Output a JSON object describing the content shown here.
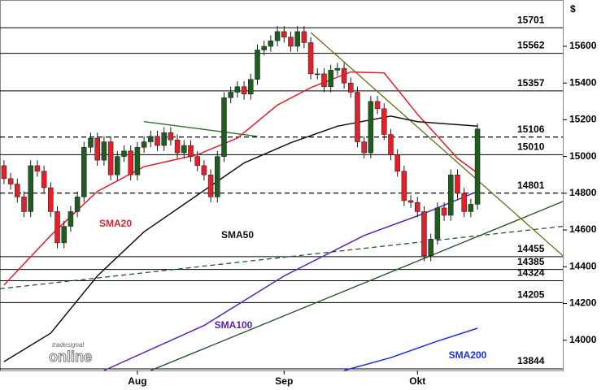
{
  "chart_data": {
    "type": "candlestick",
    "currency": "$",
    "logo": [
      "tradesignal",
      "online"
    ],
    "categories": [
      null,
      null,
      null,
      null,
      null,
      null,
      null,
      null,
      null,
      null,
      null,
      null,
      null,
      null,
      null,
      null,
      null,
      null,
      null,
      null,
      "Aug",
      null,
      null,
      null,
      null,
      null,
      null,
      null,
      null,
      null,
      null,
      null,
      null,
      null,
      null,
      null,
      null,
      null,
      null,
      null,
      null,
      null,
      "Sep",
      null,
      null,
      null,
      null,
      null,
      null,
      null,
      null,
      null,
      null,
      null,
      null,
      null,
      null,
      null,
      null,
      null,
      null,
      null,
      "Okt",
      null,
      null,
      null,
      null,
      null,
      null,
      null,
      null,
      null
    ],
    "xlim": [
      -0.6,
      83.8
    ],
    "ylim": [
      13835,
      15852
    ],
    "yticks": [
      14000,
      14200,
      14400,
      14600,
      14800,
      15000,
      15200,
      15400,
      15600
    ],
    "up_color": "#1f5c1f",
    "down_color": "#e0202a",
    "open": [
      14950,
      14880,
      14850,
      14780,
      14700,
      14950,
      14920,
      14830,
      14700,
      14530,
      14620,
      14700,
      14780,
      15050,
      15100,
      14980,
      15080,
      14900,
      15000,
      15030,
      14900,
      15050,
      15080,
      15110,
      15060,
      15130,
      15090,
      15020,
      15060,
      15000,
      14950,
      14900,
      14780,
      15000,
      15320,
      15350,
      15380,
      15340,
      15420,
      15580,
      15600,
      15630,
      15680,
      15650,
      15600,
      15680,
      15620,
      15450,
      15450,
      15380,
      15470,
      15480,
      15400,
      15350,
      15080,
      15020,
      15300,
      15260,
      15120,
      15010,
      14920,
      14760,
      14750,
      14700,
      14460,
      14550,
      14720,
      14680,
      14900,
      14800,
      14700,
      14740
    ],
    "high": [
      14980,
      14910,
      14880,
      14810,
      14980,
      14980,
      14950,
      14860,
      14730,
      14650,
      14730,
      14810,
      15080,
      15130,
      15130,
      15110,
      15110,
      15030,
      15060,
      15060,
      15080,
      15110,
      15140,
      15140,
      15160,
      15160,
      15120,
      15090,
      15090,
      15030,
      14980,
      14930,
      15030,
      15350,
      15380,
      15410,
      15410,
      15450,
      15610,
      15630,
      15660,
      15710,
      15710,
      15680,
      15710,
      15710,
      15650,
      15480,
      15480,
      15500,
      15510,
      15510,
      15430,
      15380,
      15110,
      15330,
      15330,
      15290,
      15150,
      15040,
      14950,
      14790,
      14780,
      14730,
      14580,
      14750,
      14750,
      14930,
      14930,
      14830,
      14770,
      15180
    ],
    "low": [
      14850,
      14820,
      14750,
      14670,
      14670,
      14890,
      14800,
      14670,
      14500,
      14500,
      14590,
      14670,
      14750,
      15020,
      14950,
      14950,
      14870,
      14870,
      14970,
      14870,
      14870,
      15020,
      15050,
      15030,
      15030,
      15060,
      14990,
      14990,
      14970,
      14920,
      14870,
      14750,
      14750,
      14970,
      15290,
      15320,
      15310,
      15310,
      15390,
      15550,
      15570,
      15600,
      15620,
      15570,
      15570,
      15590,
      15420,
      15420,
      15350,
      15350,
      15440,
      15370,
      15320,
      15050,
      14990,
      14990,
      15230,
      15090,
      14980,
      14890,
      14730,
      14720,
      14670,
      14430,
      14430,
      14520,
      14650,
      14650,
      14770,
      14670,
      14670,
      14710
    ],
    "close": [
      14880,
      14850,
      14780,
      14700,
      14950,
      14920,
      14830,
      14700,
      14530,
      14620,
      14700,
      14780,
      15050,
      15100,
      14980,
      15080,
      14900,
      15000,
      15030,
      14900,
      15050,
      15080,
      15110,
      15060,
      15130,
      15090,
      15020,
      15060,
      15000,
      14950,
      14900,
      14780,
      15000,
      15320,
      15350,
      15380,
      15340,
      15420,
      15580,
      15600,
      15630,
      15680,
      15650,
      15600,
      15680,
      15620,
      15450,
      15450,
      15380,
      15470,
      15480,
      15400,
      15350,
      15080,
      15020,
      15300,
      15260,
      15120,
      15010,
      14920,
      14760,
      14750,
      14700,
      14460,
      14550,
      14720,
      14680,
      14900,
      14800,
      14700,
      14740,
      15150
    ],
    "overlays": [
      {
        "name": "SMA20",
        "color": "#e0202a",
        "x": [
          0,
          7,
          14,
          21,
          29,
          35,
          41,
          46,
          52,
          57,
          62,
          68,
          71
        ],
        "values": [
          14300,
          14570,
          14810,
          14945,
          15010,
          15100,
          15280,
          15375,
          15460,
          15455,
          15230,
          14990,
          14910
        ]
      },
      {
        "name": "SMA50",
        "color": "#111111",
        "x": [
          0,
          7,
          14,
          21,
          29,
          36,
          43,
          50,
          58,
          62,
          71
        ],
        "values": [
          13883,
          14038,
          14350,
          14590,
          14790,
          14965,
          15075,
          15165,
          15220,
          15190,
          15165
        ]
      },
      {
        "name": "SMA100",
        "color": "#5a20b0",
        "x": [
          15,
          30,
          42,
          54,
          63,
          71
        ],
        "values": [
          13835,
          14080,
          14350,
          14570,
          14690,
          14810
        ]
      },
      {
        "name": "SMA200",
        "color": "#1a2ee0",
        "x": [
          51,
          58,
          65,
          71
        ],
        "values": [
          13835,
          13905,
          13995,
          14065
        ]
      }
    ],
    "trendlines": [
      {
        "color": "#1f5c1f",
        "dashed": true,
        "x": [
          -0.6,
          83.8
        ],
        "values": [
          14280,
          14620
        ]
      },
      {
        "color": "#1f4f1f",
        "dashed": false,
        "x": [
          22,
          83.8
        ],
        "values": [
          13835,
          14755
        ]
      },
      {
        "color": "#6b6b1a",
        "dashed": false,
        "x": [
          46,
          83.8
        ],
        "values": [
          15675,
          14460
        ]
      },
      {
        "color": "#2f6f2f",
        "dashed": false,
        "x": [
          21,
          38
        ],
        "values": [
          15190,
          15110
        ]
      }
    ],
    "levels": [
      {
        "value": 15701,
        "dashed": false
      },
      {
        "value": 15562,
        "dashed": false
      },
      {
        "value": 15357,
        "dashed": false
      },
      {
        "value": 15106,
        "dashed": true
      },
      {
        "value": 15010,
        "dashed": false
      },
      {
        "value": 14801,
        "dashed": true
      },
      {
        "value": 14455,
        "dashed": false
      },
      {
        "value": 14385,
        "dashed": false
      },
      {
        "value": 14324,
        "dashed": false
      },
      {
        "value": 14205,
        "dashed": false
      },
      {
        "value": 13844,
        "dashed": false
      }
    ]
  }
}
